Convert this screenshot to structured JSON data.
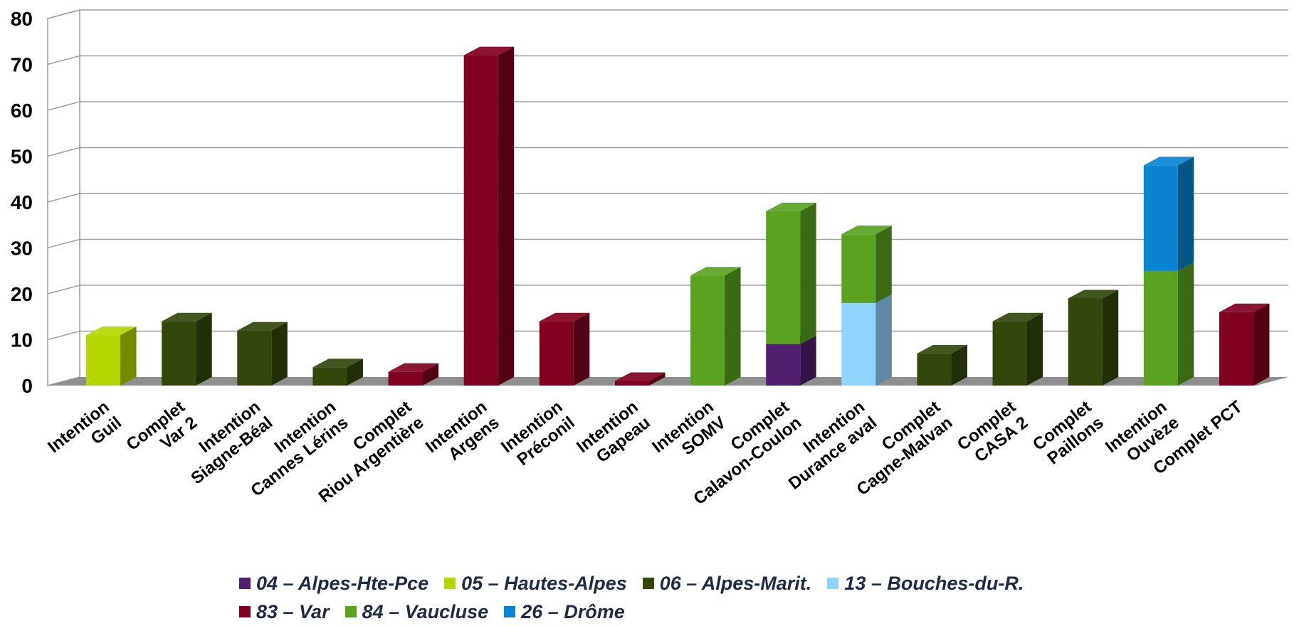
{
  "chart_data": {
    "type": "bar",
    "stacked": true,
    "ylim": [
      0,
      80
    ],
    "yticks": [
      "0",
      "10",
      "20",
      "30",
      "40",
      "50",
      "60",
      "70",
      "80"
    ],
    "grid": true,
    "legend_position": "bottom",
    "categories": [
      [
        "Intention",
        "Guil"
      ],
      [
        "Complet",
        "Var 2"
      ],
      [
        "Intention",
        "Siagne-Béal"
      ],
      [
        "Intention",
        "Cannes Lérins"
      ],
      [
        "Complet",
        "Riou Argentière"
      ],
      [
        "Intention",
        "Argens"
      ],
      [
        "Intention",
        "Préconil"
      ],
      [
        "Intention",
        "Gapeau"
      ],
      [
        "Intention",
        "SOMV"
      ],
      [
        "Complet",
        "Calavon-Coulon"
      ],
      [
        "Intention",
        "Durance aval"
      ],
      [
        "Complet",
        "Cagne-Malvan"
      ],
      [
        "Complet",
        "CASA 2"
      ],
      [
        "Complet",
        "Paillons"
      ],
      [
        "Intention",
        "Ouvèze"
      ],
      [
        "Complet PCT"
      ]
    ],
    "series": [
      {
        "name": "04 – Alpes-Hte-Pce",
        "color": "#4d1f6e",
        "values": [
          0,
          0,
          0,
          0,
          0,
          0,
          0,
          0,
          0,
          9,
          0,
          0,
          0,
          0,
          0,
          0
        ]
      },
      {
        "name": "05 – Hautes-Alpes",
        "color": "#b5d600",
        "values": [
          11,
          0,
          0,
          0,
          0,
          0,
          0,
          0,
          0,
          0,
          0,
          0,
          0,
          0,
          0,
          0
        ]
      },
      {
        "name": "06 – Alpes-Marit.",
        "color": "#33470b",
        "values": [
          0,
          14,
          12,
          4,
          0,
          0,
          0,
          0,
          0,
          0,
          0,
          7,
          14,
          19,
          0,
          0
        ]
      },
      {
        "name": "13 –  Bouches-du-R.",
        "color": "#8fd3ff",
        "values": [
          0,
          0,
          0,
          0,
          0,
          0,
          0,
          0,
          0,
          0,
          18,
          0,
          0,
          0,
          0,
          0
        ]
      },
      {
        "name": "83 –  Var",
        "color": "#80001f",
        "values": [
          0,
          0,
          0,
          0,
          3,
          72,
          14,
          1,
          0,
          0,
          0,
          0,
          0,
          0,
          0,
          16
        ]
      },
      {
        "name": "84 –  Vaucluse",
        "color": "#5aa321",
        "values": [
          0,
          0,
          0,
          0,
          0,
          0,
          0,
          0,
          24,
          29,
          15,
          0,
          0,
          0,
          25,
          0
        ]
      },
      {
        "name": "26  –  Drôme",
        "color": "#0a84d1",
        "values": [
          0,
          0,
          0,
          0,
          0,
          0,
          0,
          0,
          0,
          0,
          0,
          0,
          0,
          0,
          23,
          0
        ]
      }
    ]
  },
  "legend": {
    "rows": [
      [
        0,
        1,
        2,
        3
      ],
      [
        4,
        5,
        6
      ]
    ]
  }
}
